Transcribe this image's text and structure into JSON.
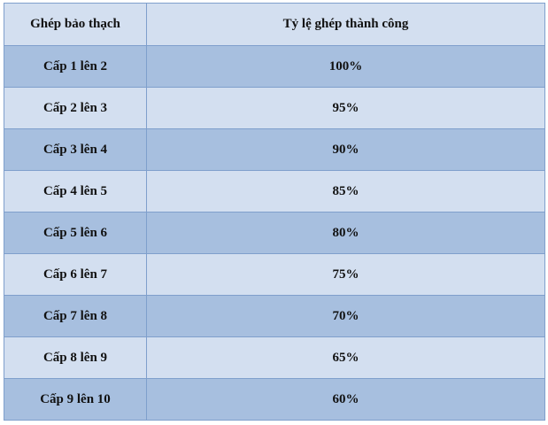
{
  "table": {
    "headers": [
      "Ghép bảo thạch",
      "Tỷ lệ ghép thành công"
    ],
    "rows": [
      [
        "Cấp 1 lên 2",
        "100%"
      ],
      [
        "Cấp 2 lên 3",
        "95%"
      ],
      [
        "Cấp 3 lên 4",
        "90%"
      ],
      [
        "Cấp 4 lên 5",
        "85%"
      ],
      [
        "Cấp 5 lên 6",
        "80%"
      ],
      [
        "Cấp 6 lên 7",
        "75%"
      ],
      [
        "Cấp 7 lên 8",
        "70%"
      ],
      [
        "Cấp 8 lên 9",
        "65%"
      ],
      [
        "Cấp 9 lên 10",
        "60%"
      ]
    ]
  },
  "colors": {
    "light_row": "#d3dff0",
    "dark_row": "#a7bfdf",
    "border": "#7f9fcc"
  }
}
